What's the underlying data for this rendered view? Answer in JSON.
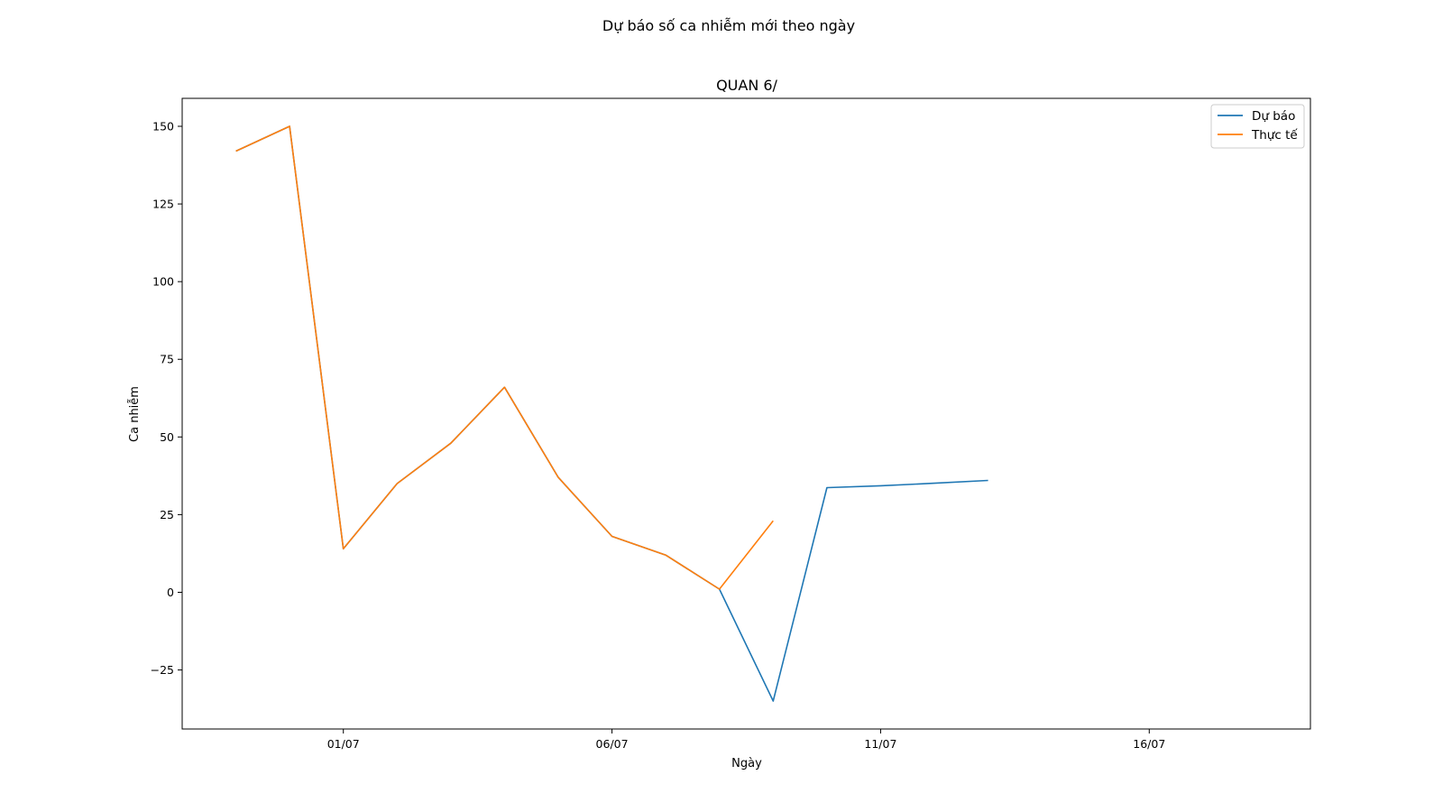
{
  "figure": {
    "suptitle": "Dự báo số ca nhiễm mới theo ngày"
  },
  "chart_data": {
    "type": "line",
    "title": "QUAN 6/",
    "xlabel": "Ngày",
    "ylabel": "Ca nhiễm",
    "x_tick_labels": [
      "01/07",
      "06/07",
      "11/07",
      "16/07"
    ],
    "x_tick_dates": [
      "2021-07-01",
      "2021-07-06",
      "2021-07-11",
      "2021-07-16"
    ],
    "xlim": [
      "2021-06-28",
      "2021-07-19"
    ],
    "ylim": [
      -44,
      159
    ],
    "y_ticks": [
      -25,
      0,
      25,
      50,
      75,
      100,
      125,
      150
    ],
    "grid": false,
    "legend": "top-right",
    "series": [
      {
        "name": "Dự báo",
        "color": "#1f77b4",
        "x": [
          "2021-06-29",
          "2021-06-30",
          "2021-07-01",
          "2021-07-02",
          "2021-07-03",
          "2021-07-04",
          "2021-07-05",
          "2021-07-06",
          "2021-07-07",
          "2021-07-08",
          "2021-07-09",
          "2021-07-10",
          "2021-07-11",
          "2021-07-12",
          "2021-07-13"
        ],
        "values": [
          142,
          150,
          14,
          35,
          48,
          66,
          37,
          18,
          12,
          1,
          -35,
          33.7,
          34.3,
          35.1,
          36
        ]
      },
      {
        "name": "Thực tế",
        "color": "#ff7f0e",
        "x": [
          "2021-06-29",
          "2021-06-30",
          "2021-07-01",
          "2021-07-02",
          "2021-07-03",
          "2021-07-04",
          "2021-07-05",
          "2021-07-06",
          "2021-07-07",
          "2021-07-08",
          "2021-07-09"
        ],
        "values": [
          142,
          150,
          14,
          35,
          48,
          66,
          37,
          18,
          12,
          1,
          23
        ]
      }
    ]
  }
}
